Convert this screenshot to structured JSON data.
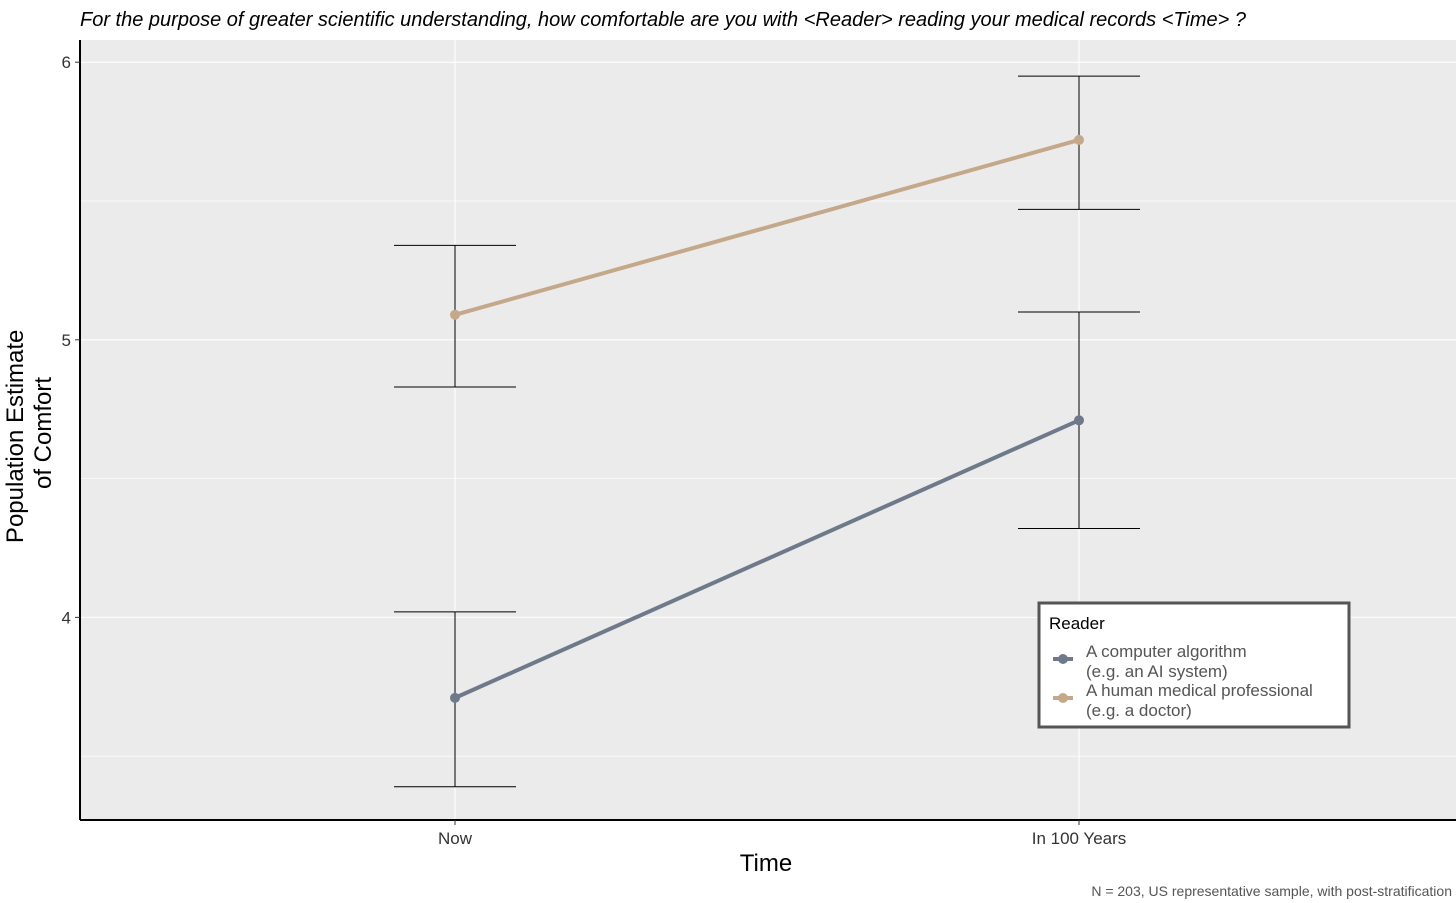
{
  "chart_data": {
    "type": "line",
    "title": "For the purpose of greater scientific understanding, how comfortable are you with <Reader> reading your medical records <Time> ?",
    "xlabel": "Time",
    "ylabel_lines": [
      "Population Estimate",
      "of Comfort"
    ],
    "categories": [
      "Now",
      "In 100 Years"
    ],
    "ylim": [
      3.27,
      6.08
    ],
    "yticks": [
      4,
      5,
      6
    ],
    "ygrid_minor": [
      3.5,
      4.5,
      5.5
    ],
    "grid": true,
    "series": [
      {
        "name": "A computer algorithm (e.g. an AI system)",
        "label_lines": [
          "A computer algorithm",
          "(e.g. an AI system)"
        ],
        "color": "#6e7a8a",
        "values": [
          3.71,
          4.71
        ],
        "lower": [
          3.39,
          4.32
        ],
        "upper": [
          4.02,
          5.1
        ]
      },
      {
        "name": "A human medical professional (e.g. a doctor)",
        "label_lines": [
          "A human medical professional",
          "(e.g. a doctor)"
        ],
        "color": "#c4a88a",
        "values": [
          5.09,
          5.72
        ],
        "lower": [
          4.83,
          5.47
        ],
        "upper": [
          5.34,
          5.95
        ]
      }
    ],
    "legend": {
      "title": "Reader",
      "placement": "bottom-right"
    },
    "caption": "N = 203, US representative sample, with post-stratification"
  }
}
